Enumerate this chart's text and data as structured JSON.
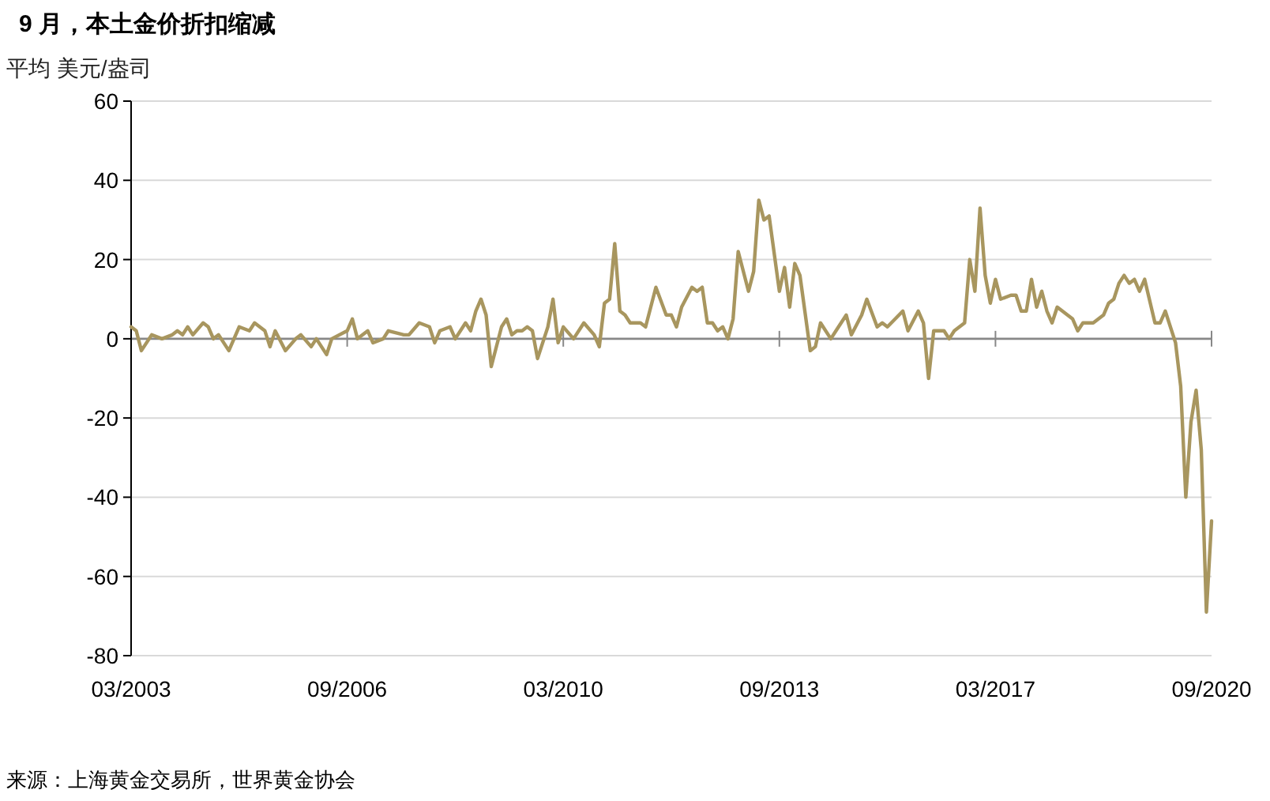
{
  "chart_data": {
    "type": "line",
    "title": "9 月，本土金价折扣缩减",
    "ylabel": "平均 美元/盎司",
    "annotations": [
      "来源：上海黄金交易所，世界黄金协会"
    ],
    "xlim": [
      "2003-03",
      "2020-09"
    ],
    "xticks": [
      {
        "value": "2003-03",
        "label": "03/2003"
      },
      {
        "value": "2006-09",
        "label": "09/2006"
      },
      {
        "value": "2010-03",
        "label": "03/2010"
      },
      {
        "value": "2013-09",
        "label": "09/2013"
      },
      {
        "value": "2017-03",
        "label": "03/2017"
      },
      {
        "value": "2020-09",
        "label": "09/2020"
      }
    ],
    "ylim": [
      -80,
      60
    ],
    "yticks": [
      -80,
      -60,
      -40,
      -20,
      0,
      20,
      40,
      60
    ],
    "grid": "y",
    "series": [
      {
        "color": "#a8965f",
        "x": [
          "2003-03",
          "2003-04",
          "2003-05",
          "2003-07",
          "2003-09",
          "2003-11",
          "2003-12",
          "2004-01",
          "2004-02",
          "2004-03",
          "2004-05",
          "2004-06",
          "2004-07",
          "2004-08",
          "2004-10",
          "2004-12",
          "2005-02",
          "2005-03",
          "2005-05",
          "2005-06",
          "2005-07",
          "2005-09",
          "2005-11",
          "2005-12",
          "2006-02",
          "2006-03",
          "2006-05",
          "2006-06",
          "2006-09",
          "2006-10",
          "2006-11",
          "2007-01",
          "2007-02",
          "2007-04",
          "2007-05",
          "2007-08",
          "2007-09",
          "2007-11",
          "2008-01",
          "2008-02",
          "2008-03",
          "2008-05",
          "2008-06",
          "2008-08",
          "2008-09",
          "2008-10",
          "2008-11",
          "2008-12",
          "2009-01",
          "2009-03",
          "2009-04",
          "2009-05",
          "2009-06",
          "2009-07",
          "2009-08",
          "2009-09",
          "2009-10",
          "2009-12",
          "2010-01",
          "2010-02",
          "2010-03",
          "2010-05",
          "2010-07",
          "2010-09",
          "2010-10",
          "2010-11",
          "2010-12",
          "2011-01",
          "2011-02",
          "2011-03",
          "2011-04",
          "2011-06",
          "2011-07",
          "2011-09",
          "2011-11",
          "2011-12",
          "2012-01",
          "2012-02",
          "2012-04",
          "2012-05",
          "2012-06",
          "2012-07",
          "2012-08",
          "2012-09",
          "2012-10",
          "2012-11",
          "2012-12",
          "2013-01",
          "2013-03",
          "2013-04",
          "2013-05",
          "2013-06",
          "2013-07",
          "2013-09",
          "2013-10",
          "2013-11",
          "2013-12",
          "2014-01",
          "2014-03",
          "2014-04",
          "2014-05",
          "2014-07",
          "2014-08",
          "2014-10",
          "2014-11",
          "2015-01",
          "2015-02",
          "2015-04",
          "2015-05",
          "2015-06",
          "2015-09",
          "2015-10",
          "2015-12",
          "2016-01",
          "2016-02",
          "2016-03",
          "2016-05",
          "2016-06",
          "2016-07",
          "2016-09",
          "2016-10",
          "2016-11",
          "2016-12",
          "2017-01",
          "2017-02",
          "2017-03",
          "2017-04",
          "2017-06",
          "2017-07",
          "2017-08",
          "2017-09",
          "2017-10",
          "2017-11",
          "2017-12",
          "2018-01",
          "2018-02",
          "2018-03",
          "2018-05",
          "2018-06",
          "2018-07",
          "2018-08",
          "2018-09",
          "2018-10",
          "2018-12",
          "2019-01",
          "2019-02",
          "2019-03",
          "2019-04",
          "2019-05",
          "2019-06",
          "2019-07",
          "2019-08",
          "2019-10",
          "2019-11",
          "2019-12",
          "2020-02",
          "2020-03",
          "2020-04",
          "2020-05",
          "2020-06",
          "2020-07",
          "2020-08",
          "2020-09"
        ],
        "values": [
          3,
          2,
          -3,
          1,
          0,
          1,
          2,
          1,
          3,
          1,
          4,
          3,
          0,
          1,
          -3,
          3,
          2,
          4,
          2,
          -2,
          2,
          -3,
          0,
          1,
          -2,
          0,
          -4,
          0,
          2,
          5,
          0,
          2,
          -1,
          0,
          2,
          1,
          1,
          4,
          3,
          -1,
          2,
          3,
          0,
          4,
          2,
          7,
          10,
          6,
          -7,
          3,
          5,
          1,
          2,
          2,
          3,
          2,
          -5,
          3,
          10,
          -1,
          3,
          0,
          4,
          1,
          -2,
          9,
          10,
          24,
          7,
          6,
          4,
          4,
          3,
          13,
          6,
          6,
          3,
          8,
          13,
          12,
          13,
          4,
          4,
          2,
          3,
          0,
          5,
          22,
          12,
          17,
          35,
          30,
          31,
          12,
          18,
          8,
          19,
          16,
          -3,
          -2,
          4,
          0,
          2,
          6,
          1,
          6,
          10,
          3,
          4,
          3,
          7,
          2,
          7,
          4,
          -10,
          2,
          2,
          0,
          2,
          4,
          20,
          12,
          33,
          16,
          9,
          15,
          10,
          11,
          11,
          7,
          7,
          15,
          8,
          12,
          7,
          4,
          8,
          6,
          5,
          2,
          4,
          4,
          4,
          6,
          9,
          10,
          14,
          16,
          14,
          15,
          12,
          15,
          4,
          4,
          7,
          -1,
          -12,
          -40,
          -21,
          -13,
          -28,
          -69,
          -46
        ]
      }
    ]
  }
}
